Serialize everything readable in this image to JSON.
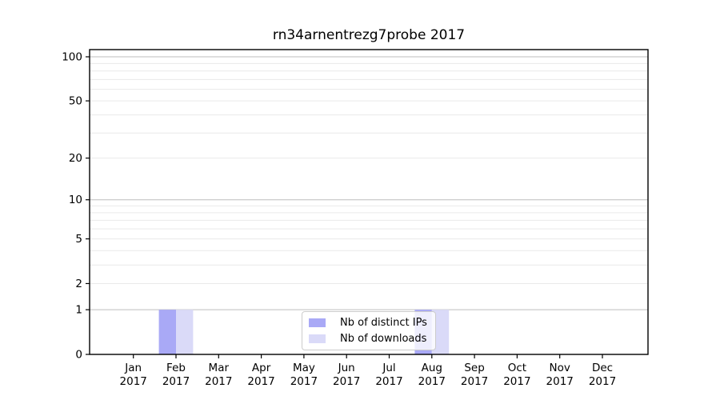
{
  "title": "rn34arnentrezg7probe 2017",
  "colors": {
    "series_distinct_ips": "#a9a9f6",
    "series_downloads": "#dadaf8",
    "grid_major": "#bdbdbd",
    "grid_minor": "#e9e9e9",
    "spine": "#000000",
    "legend_border": "#cccccc",
    "legend_background": "rgba(255,255,255,0.8)"
  },
  "chart_data": {
    "type": "bar",
    "title": "rn34arnentrezg7probe 2017",
    "xlabel": "",
    "ylabel": "",
    "categories": [
      "Jan",
      "Feb",
      "Mar",
      "Apr",
      "May",
      "Jun",
      "Jul",
      "Aug",
      "Sep",
      "Oct",
      "Nov",
      "Dec"
    ],
    "year_label": "2017",
    "series": [
      {
        "name": "Nb of distinct IPs",
        "color": "#a9a9f6",
        "values": [
          0,
          1,
          0,
          0,
          0,
          0,
          0,
          1,
          0,
          0,
          0,
          0
        ]
      },
      {
        "name": "Nb of downloads",
        "color": "#dadaf8",
        "values": [
          0,
          1,
          0,
          0,
          0,
          0,
          0,
          1,
          0,
          0,
          0,
          0
        ]
      }
    ],
    "yscale": "log1p",
    "ylim": [
      0,
      112
    ],
    "yticks": [
      0,
      1,
      2,
      5,
      10,
      20,
      50,
      100
    ],
    "grid_major_values": [
      1,
      10,
      100
    ],
    "grid_minor_values": [
      2,
      3,
      4,
      5,
      6,
      7,
      8,
      9,
      20,
      30,
      40,
      50,
      60,
      70,
      80,
      90
    ],
    "grid": true,
    "legend_position": "lower center"
  }
}
